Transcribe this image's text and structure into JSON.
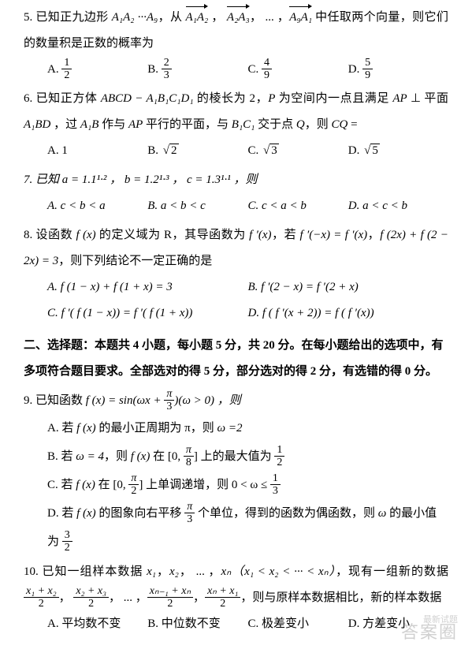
{
  "q5": {
    "stem_a": "5. 已知正九边形 ",
    "poly": "A₁A₂ ···A₉",
    "stem_b": "，从 ",
    "vec1": "A₁A₂",
    "vec2": "A₂A₃",
    "dots": "， ... ，",
    "vec3": "A₉A₁",
    "stem_c": " 中任取两个向量，则它们的数量积是正数的概率为",
    "choices": {
      "A": {
        "label": "A.",
        "num": "1",
        "den": "2"
      },
      "B": {
        "label": "B.",
        "num": "2",
        "den": "3"
      },
      "C": {
        "label": "C.",
        "num": "4",
        "den": "9"
      },
      "D": {
        "label": "D.",
        "num": "5",
        "den": "9"
      }
    }
  },
  "q6": {
    "stem_a": "6. 已知正方体 ",
    "cube": "ABCD − A₁B₁C₁D₁",
    "stem_b": " 的棱长为 2，",
    "P": "P",
    "stem_c": " 为空间内一点且满足 ",
    "ap": "AP",
    "stem_d": " ⊥ 平面 ",
    "plane": "A₁BD",
    "stem_e": " ，过 ",
    "A1B": "A₁B",
    "stem_f": " 作与 ",
    "ap2": "AP",
    "stem_g": " 平行的平面，与 ",
    "B1C1": "B₁C₁",
    "stem_h": " 交于点 ",
    "Q": "Q",
    "stem_i": "，则 ",
    "CQ": "CQ",
    "stem_j": " =",
    "choices": {
      "A": {
        "label": "A.",
        "val": "1"
      },
      "B": {
        "label": "B.",
        "rad": "2"
      },
      "C": {
        "label": "C.",
        "rad": "3"
      },
      "D": {
        "label": "D.",
        "rad": "5"
      }
    }
  },
  "q7": {
    "stem": "7. 已知 a = 1.1¹·² ， b = 1.2¹·³ ， c = 1.3¹·¹ ，则",
    "choices": {
      "A": {
        "label": "A.",
        "val": "c < b < a"
      },
      "B": {
        "label": "B.",
        "val": "a < b < c"
      },
      "C": {
        "label": "C.",
        "val": "c < a < b"
      },
      "D": {
        "label": "D.",
        "val": "a < c < b"
      }
    }
  },
  "q8": {
    "stem_a": "8. 设函数 ",
    "fx": "f (x)",
    "stem_b": " 的定义域为 R，其导函数为 ",
    "fpx": "f ′(x)",
    "stem_c": "，若 ",
    "eq1": "f ′(−x) = f ′(x)",
    "comma": "，",
    "eq2": "f (2x) + f (2 − 2x) = 3",
    "stem_d": "，则下列结论不一定正确的是",
    "choices": {
      "A": {
        "label": "A.",
        "val": "f (1 − x) + f (1 + x) = 3"
      },
      "B": {
        "label": "B.",
        "val": "f ′(2 − x) = f ′(2 + x)"
      },
      "C": {
        "label": "C.",
        "val": "f ′( f (1 − x)) = f ′( f (1 + x))"
      },
      "D": {
        "label": "D.",
        "val": "f ( f ′(x + 2)) = f ( f ′(x))"
      }
    }
  },
  "section2": "二、选择题：本题共 4 小题，每小题 5 分，共 20 分。在每小题给出的选项中，有多项符合题目要求。全部选对的得 5 分，部分选对的得 2 分，有选错的得 0 分。",
  "q9": {
    "stem_a": "9. 已知函数 ",
    "fx": "f (x) = sin(ωx + ",
    "frac": {
      "num": "π",
      "den": "3"
    },
    "stem_b": ")(ω > 0) ，则",
    "A_a": "A. 若 ",
    "A_fx": "f (x)",
    "A_b": " 的最小正周期为 π，则 ",
    "A_c": "ω =2",
    "B_a": "B. 若 ",
    "B_w": "ω = 4",
    "B_b": "，则 ",
    "B_fx": "f (x)",
    "B_c": " 在 [0, ",
    "B_frac": {
      "num": "π",
      "den": "8"
    },
    "B_d": "] 上的最大值为 ",
    "B_frac2": {
      "num": "1",
      "den": "2"
    },
    "C_a": "C. 若 ",
    "C_fx": "f (x)",
    "C_b": " 在 [0, ",
    "C_frac": {
      "num": "π",
      "den": "2"
    },
    "C_c": "] 上单调递增，则 0 < ω ≤ ",
    "C_frac2": {
      "num": "1",
      "den": "3"
    },
    "D_a": "D. 若 ",
    "D_fx": "f (x)",
    "D_b": " 的图象向右平移 ",
    "D_frac": {
      "num": "π",
      "den": "3"
    },
    "D_c": " 个单位，得到的函数为偶函数，则 ",
    "D_w": "ω",
    "D_d": " 的最小值为 ",
    "D_frac2": {
      "num": "3",
      "den": "2"
    }
  },
  "q10": {
    "stem_a": "10. 已知一组样本数据 ",
    "x1": "x₁",
    "c1": "，",
    "x2": "x₂",
    "c2": "， ... ，",
    "xn": "xₙ",
    "paren": "（x₁ < x₂ < ··· < xₙ）",
    "stem_b": "，现有一组新的数据 ",
    "f1": {
      "num": "x₁ + x₂",
      "den": "2"
    },
    "comma": "，",
    "f2": {
      "num": "x₂ + x₃",
      "den": "2"
    },
    "dots2": "， ... ，",
    "f3": {
      "num": "xₙ₋₁ + xₙ",
      "den": "2"
    },
    "f4": {
      "num": "xₙ + x₁",
      "den": "2"
    },
    "stem_c": "，则与原样本数据相比，新的样本数据",
    "choices": {
      "A": {
        "label": "A.",
        "val": "平均数不变"
      },
      "B": {
        "label": "B.",
        "val": "中位数不变"
      },
      "C": {
        "label": "C.",
        "val": "极差变小"
      },
      "D": {
        "label": "D.",
        "val": "方差变小"
      }
    }
  },
  "watermark_big": "答案圈",
  "watermark_small": "最新试题"
}
